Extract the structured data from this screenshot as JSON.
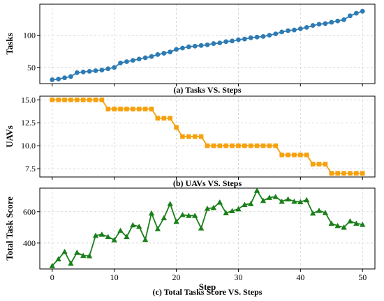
{
  "chart_data": [
    {
      "type": "line",
      "marker": "circle",
      "color": "#2e7bb4",
      "ylabel": "Tasks",
      "caption": "(a) Tasks VS. Steps",
      "xlabel": "",
      "xlim": [
        -2,
        52
      ],
      "ylim": [
        25,
        148
      ],
      "xticks": [
        0,
        10,
        20,
        30,
        40,
        50
      ],
      "yticks": [
        50,
        100
      ],
      "grid": true,
      "show_xtick_labels": false,
      "series": [
        {
          "x": [
            0,
            1,
            2,
            3,
            4,
            5,
            6,
            7,
            8,
            9,
            10,
            11,
            12,
            13,
            14,
            15,
            16,
            17,
            18,
            19,
            20,
            21,
            22,
            23,
            24,
            25,
            26,
            27,
            28,
            29,
            30,
            31,
            32,
            33,
            34,
            35,
            36,
            37,
            38,
            39,
            40,
            41,
            42,
            43,
            44,
            45,
            46,
            47,
            48,
            49,
            50
          ],
          "values": [
            31,
            32,
            34,
            36,
            42,
            43,
            44,
            45,
            46,
            48,
            50,
            57,
            59,
            61,
            63,
            65,
            67,
            70,
            72,
            74,
            78,
            80,
            82,
            83,
            84,
            85,
            87,
            88,
            90,
            91,
            93,
            94,
            96,
            97,
            98,
            100,
            102,
            105,
            107,
            108,
            110,
            112,
            115,
            117,
            118,
            120,
            122,
            124,
            130,
            134,
            137
          ]
        }
      ]
    },
    {
      "type": "line",
      "marker": "square",
      "color": "#f5a10d",
      "ylabel": "UAVs",
      "caption": "(b) UAVs VS. Steps",
      "xlabel": "",
      "xlim": [
        -2,
        52
      ],
      "ylim": [
        6.6,
        15.4
      ],
      "xticks": [
        0,
        10,
        20,
        30,
        40,
        50
      ],
      "yticks": [
        7.5,
        10.0,
        12.5,
        15.0
      ],
      "ytick_labels": [
        "7.5",
        "10.0",
        "12.5",
        "15.0"
      ],
      "grid": true,
      "show_xtick_labels": false,
      "series": [
        {
          "x": [
            0,
            1,
            2,
            3,
            4,
            5,
            6,
            7,
            8,
            9,
            10,
            11,
            12,
            13,
            14,
            15,
            16,
            17,
            18,
            19,
            20,
            21,
            22,
            23,
            24,
            25,
            26,
            27,
            28,
            29,
            30,
            31,
            32,
            33,
            34,
            35,
            36,
            37,
            38,
            39,
            40,
            41,
            42,
            43,
            44,
            45,
            46,
            47,
            48,
            49,
            50
          ],
          "values": [
            15,
            15,
            15,
            15,
            15,
            15,
            15,
            15,
            15,
            14,
            14,
            14,
            14,
            14,
            14,
            14,
            14,
            13,
            13,
            13,
            12,
            11,
            11,
            11,
            11,
            10,
            10,
            10,
            10,
            10,
            10,
            10,
            10,
            10,
            10,
            10,
            10,
            9,
            9,
            9,
            9,
            9,
            8,
            8,
            8,
            7,
            7,
            7,
            7,
            7,
            7
          ]
        }
      ]
    },
    {
      "type": "line",
      "marker": "triangle",
      "color": "#1a7f1a",
      "ylabel": "Total Task Score",
      "caption": "(c) Total Tasks Score VS. Steps",
      "xlabel": "Step",
      "xlim": [
        -2,
        52
      ],
      "ylim": [
        235,
        750
      ],
      "xticks": [
        0,
        10,
        20,
        30,
        40,
        50
      ],
      "yticks": [
        400,
        600
      ],
      "grid": true,
      "show_xtick_labels": true,
      "series": [
        {
          "x": [
            0,
            1,
            2,
            3,
            4,
            5,
            6,
            7,
            8,
            9,
            10,
            11,
            12,
            13,
            14,
            15,
            16,
            17,
            18,
            19,
            20,
            21,
            22,
            23,
            24,
            25,
            26,
            27,
            28,
            29,
            30,
            31,
            32,
            33,
            34,
            35,
            36,
            37,
            38,
            39,
            40,
            41,
            42,
            43,
            44,
            45,
            46,
            47,
            48,
            49,
            50
          ],
          "values": [
            255,
            298,
            345,
            270,
            340,
            320,
            318,
            448,
            455,
            440,
            420,
            480,
            440,
            515,
            505,
            422,
            590,
            490,
            560,
            650,
            537,
            580,
            575,
            575,
            495,
            620,
            625,
            660,
            592,
            605,
            617,
            645,
            650,
            735,
            670,
            690,
            695,
            665,
            680,
            665,
            662,
            675,
            590,
            607,
            593,
            525,
            510,
            500,
            540,
            525,
            518
          ]
        }
      ]
    }
  ]
}
